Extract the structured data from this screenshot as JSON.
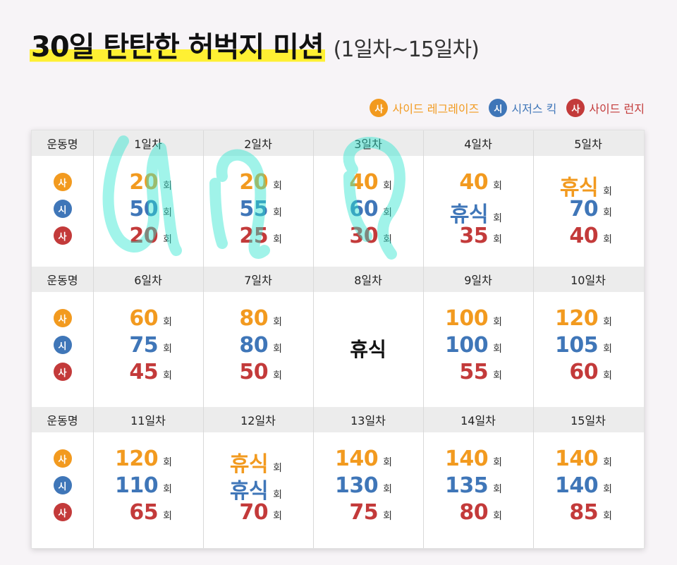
{
  "title": "30일 탄탄한 허벅지 미션",
  "subtitle": "(1일차~15일차)",
  "unit": "회",
  "legend": [
    {
      "badge": "사",
      "label": "사이드 레그레이즈",
      "color": "#f29a1f"
    },
    {
      "badge": "시",
      "label": "시저스 킥",
      "color": "#3f76b8"
    },
    {
      "badge": "사",
      "label": "사이드 런지",
      "color": "#c33a3a"
    }
  ],
  "exercise_header": "운동명",
  "rest_label": "휴식",
  "blocks": [
    {
      "days": [
        {
          "label": "1일차",
          "values": [
            "20",
            "50",
            "20"
          ]
        },
        {
          "label": "2일차",
          "values": [
            "20",
            "55",
            "25"
          ]
        },
        {
          "label": "3일차",
          "values": [
            "40",
            "60",
            "30"
          ]
        },
        {
          "label": "4일차",
          "values": [
            "40",
            "휴식",
            "35"
          ]
        },
        {
          "label": "5일차",
          "values": [
            "휴식",
            "70",
            "40"
          ]
        }
      ]
    },
    {
      "days": [
        {
          "label": "6일차",
          "values": [
            "60",
            "75",
            "45"
          ]
        },
        {
          "label": "7일차",
          "values": [
            "80",
            "80",
            "50"
          ]
        },
        {
          "label": "8일차",
          "rest": "휴식"
        },
        {
          "label": "9일차",
          "values": [
            "100",
            "100",
            "55"
          ]
        },
        {
          "label": "10일차",
          "values": [
            "120",
            "105",
            "60"
          ]
        }
      ]
    },
    {
      "days": [
        {
          "label": "11일차",
          "values": [
            "120",
            "110",
            "65"
          ]
        },
        {
          "label": "12일차",
          "values": [
            "휴식",
            "휴식",
            "70"
          ]
        },
        {
          "label": "13일차",
          "values": [
            "140",
            "130",
            "75"
          ]
        },
        {
          "label": "14일차",
          "values": [
            "140",
            "135",
            "80"
          ]
        },
        {
          "label": "15일차",
          "values": [
            "140",
            "140",
            "85"
          ]
        }
      ]
    }
  ]
}
